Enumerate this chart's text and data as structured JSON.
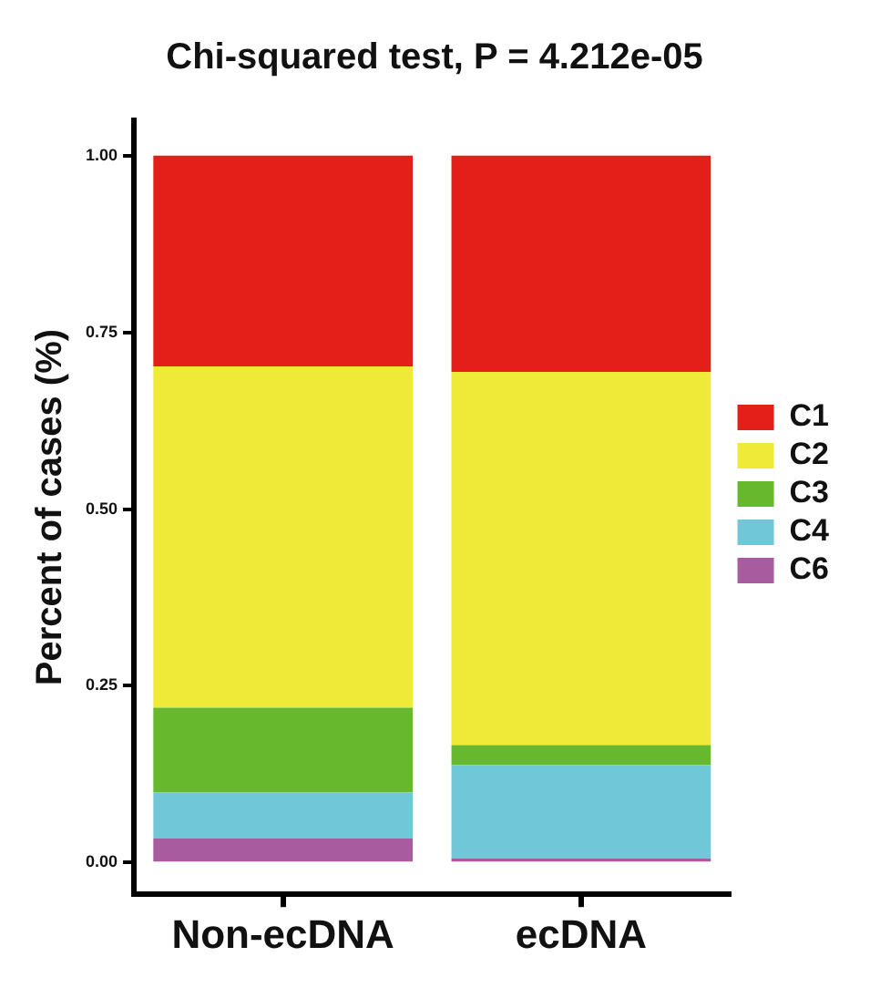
{
  "chart_data": {
    "type": "bar",
    "title": "Chi-squared test, P = 4.212e-05",
    "ylabel": "Percent of cases (%)",
    "categories": [
      "Non-ecDNA",
      "ecDNA"
    ],
    "stacked": true,
    "legend": "right",
    "grid": false,
    "series": [
      {
        "name": "C6",
        "color": "#a95ba0",
        "values": [
          0.034,
          0.006
        ]
      },
      {
        "name": "C4",
        "color": "#6fc7d7",
        "values": [
          0.065,
          0.132
        ]
      },
      {
        "name": "C3",
        "color": "#68b82d",
        "values": [
          0.12,
          0.028
        ]
      },
      {
        "name": "C2",
        "color": "#efea38",
        "values": [
          0.483,
          0.528
        ]
      },
      {
        "name": "C1",
        "color": "#e41f1a",
        "values": [
          0.298,
          0.306
        ]
      }
    ],
    "ylim": [
      -0.045,
      1.05
    ],
    "yticks": [
      {
        "value": 0,
        "label": "0.00"
      },
      {
        "value": 0.25,
        "label": "0.25"
      },
      {
        "value": 0.5,
        "label": "0.50"
      },
      {
        "value": 0.75,
        "label": "0.75"
      },
      {
        "value": 1,
        "label": "1.00"
      }
    ]
  }
}
